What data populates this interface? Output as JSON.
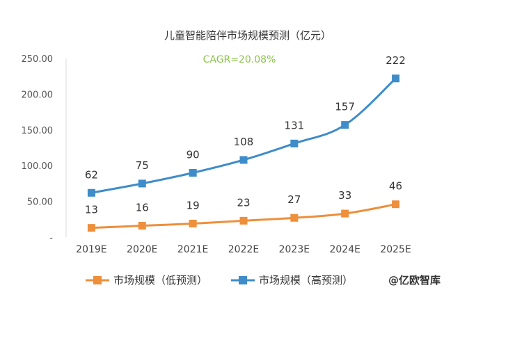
{
  "chart_data": {
    "type": "line",
    "title": "儿童智能陪伴市场规模预测（亿元）",
    "annotation": "CAGR=20.08%",
    "categories": [
      "2019E",
      "2020E",
      "2021E",
      "2022E",
      "2023E",
      "2024E",
      "2025E"
    ],
    "series": [
      {
        "name": "市场规模（低预测）",
        "values": [
          13,
          16,
          19,
          23,
          27,
          33,
          46
        ],
        "color": "#ED8F3B"
      },
      {
        "name": "市场规模（高预测）",
        "values": [
          62,
          75,
          90,
          108,
          131,
          157,
          222
        ],
        "color": "#3E8CC9"
      }
    ],
    "ylim": [
      0,
      250
    ],
    "yticks": [
      0,
      50,
      100,
      150,
      200,
      250
    ],
    "ytick_labels": [
      "-",
      "50.00",
      "100.00",
      "150.00",
      "200.00",
      "250.00"
    ],
    "xlabel": "",
    "ylabel": "",
    "legend_position": "bottom",
    "grid": false
  },
  "watermark": "@亿欧智库",
  "colors": {
    "annotation": "#8BC34A",
    "axis": "#D9D9D9"
  }
}
